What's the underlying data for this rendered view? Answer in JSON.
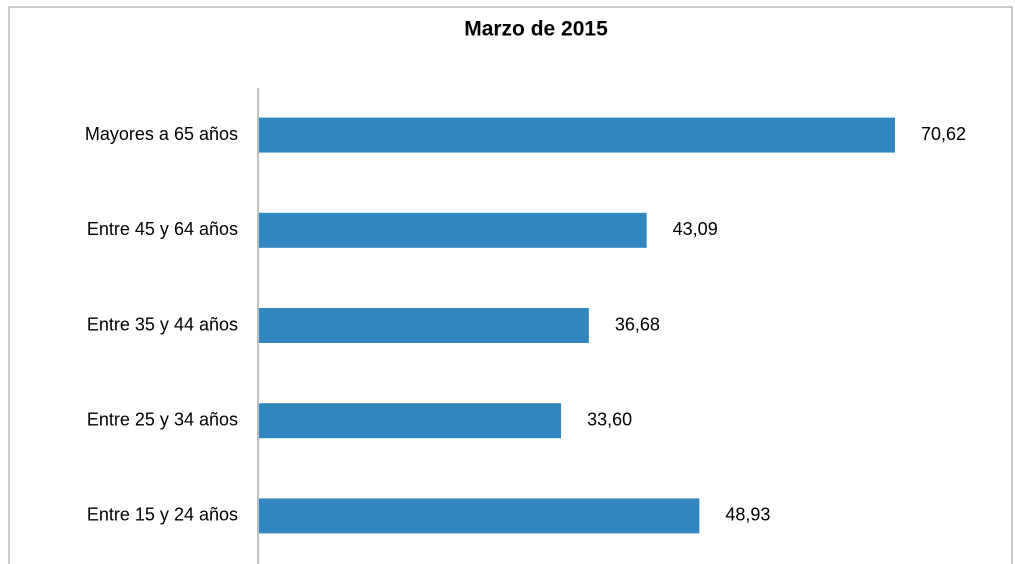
{
  "chart_data": {
    "type": "bar",
    "orientation": "horizontal",
    "title": "Marzo de 2015",
    "categories": [
      "Mayores a 65 años",
      "Entre 45 y 64 años",
      "Entre 35 y 44 años",
      "Entre 25 y 34 años",
      "Entre 15 y 24 años"
    ],
    "values": [
      70.62,
      43.09,
      36.68,
      33.6,
      48.93
    ],
    "value_labels": [
      "70,62",
      "43,09",
      "36,68",
      "33,60",
      "48,93"
    ],
    "color": "#3287c1",
    "xlim": [
      0,
      80
    ]
  }
}
